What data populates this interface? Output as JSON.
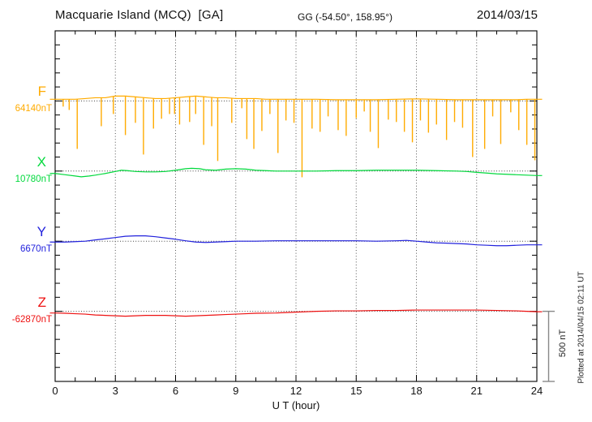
{
  "header": {
    "station_title": "Macquarie Island (MCQ)  [GA]",
    "coordinates": "GG (-54.50°, 158.95°)",
    "date": "2014/03/15"
  },
  "x_axis": {
    "label": "U T (hour)",
    "ticks": [
      0,
      3,
      6,
      9,
      12,
      15,
      18,
      21,
      24
    ]
  },
  "scale_bar": {
    "label": "500 nT",
    "value_nT": 500
  },
  "side_note": "Plotted at 2014/04/15 02:11 UT",
  "chart_data": {
    "type": "line",
    "title": "Magnetogram Macquarie Island (MCQ) [GA] 2014/03/15",
    "xlabel": "U T (hour)",
    "x_range": [
      0,
      24
    ],
    "x_major_tick_hours": 3,
    "x_minor_tick_hours": 1,
    "y_tick_interval_nT": 100,
    "trace_separation_nT": 500,
    "grid": "dotted-vertical-at-3h-and-dotted-baselines",
    "series": [
      {
        "component": "F",
        "reference_value": "64140nT",
        "color": "#FFAB00",
        "baseline_offsets_nT": [
          [
            0,
            12
          ],
          [
            1,
            12
          ],
          [
            1.5,
            17
          ],
          [
            2,
            23
          ],
          [
            2.5,
            23
          ],
          [
            3,
            35
          ],
          [
            3.5,
            35
          ],
          [
            4,
            29
          ],
          [
            4.5,
            23
          ],
          [
            5,
            17
          ],
          [
            5.5,
            17
          ],
          [
            6,
            23
          ],
          [
            6.5,
            29
          ],
          [
            7,
            35
          ],
          [
            7.5,
            29
          ],
          [
            8,
            23
          ],
          [
            8.5,
            23
          ],
          [
            9,
            17
          ],
          [
            10,
            17
          ],
          [
            10.5,
            12
          ],
          [
            11,
            12
          ],
          [
            12,
            12
          ],
          [
            13,
            12
          ],
          [
            14,
            9
          ],
          [
            15,
            9
          ],
          [
            16,
            9
          ],
          [
            17,
            12
          ],
          [
            18,
            15
          ],
          [
            19,
            12
          ],
          [
            20,
            9
          ],
          [
            21,
            9
          ],
          [
            22,
            9
          ],
          [
            23,
            9
          ],
          [
            23.5,
            12
          ],
          [
            24,
            12
          ]
        ],
        "dropout_spikes_nT": [
          [
            0.4,
            40
          ],
          [
            0.7,
            64
          ],
          [
            1.1,
            342
          ],
          [
            2.3,
            180
          ],
          [
            2.9,
            93
          ],
          [
            3.5,
            243
          ],
          [
            4.0,
            156
          ],
          [
            4.4,
            382
          ],
          [
            4.9,
            197
          ],
          [
            5.3,
            127
          ],
          [
            5.7,
            93
          ],
          [
            5.95,
            93
          ],
          [
            6.2,
            168
          ],
          [
            6.7,
            150
          ],
          [
            7.0,
            93
          ],
          [
            7.4,
            313
          ],
          [
            7.8,
            180
          ],
          [
            8.1,
            428
          ],
          [
            8.8,
            156
          ],
          [
            9.3,
            52
          ],
          [
            9.55,
            272
          ],
          [
            9.9,
            342
          ],
          [
            10.3,
            214
          ],
          [
            10.7,
            93
          ],
          [
            11.1,
            371
          ],
          [
            11.5,
            139
          ],
          [
            11.9,
            156
          ],
          [
            12.3,
            544
          ],
          [
            12.8,
            197
          ],
          [
            13.2,
            220
          ],
          [
            13.6,
            110
          ],
          [
            14.1,
            208
          ],
          [
            14.5,
            249
          ],
          [
            15.0,
            122
          ],
          [
            15.4,
            75
          ],
          [
            15.7,
            220
          ],
          [
            16.1,
            336
          ],
          [
            16.6,
            133
          ],
          [
            17.0,
            150
          ],
          [
            17.4,
            220
          ],
          [
            17.8,
            295
          ],
          [
            18.2,
            139
          ],
          [
            18.6,
            226
          ],
          [
            19.0,
            168
          ],
          [
            19.5,
            278
          ],
          [
            19.9,
            150
          ],
          [
            20.3,
            191
          ],
          [
            20.8,
            400
          ],
          [
            21.4,
            342
          ],
          [
            21.8,
            110
          ],
          [
            22.2,
            307
          ],
          [
            22.7,
            81
          ],
          [
            23.1,
            208
          ],
          [
            23.5,
            313
          ],
          [
            23.9,
            423
          ]
        ]
      },
      {
        "component": "X",
        "reference_value": "10780nT",
        "color": "#00D93C",
        "baseline_offsets_nT": [
          [
            0,
            -17
          ],
          [
            0.5,
            -26
          ],
          [
            1,
            -35
          ],
          [
            1.3,
            -41
          ],
          [
            1.7,
            -35
          ],
          [
            2,
            -29
          ],
          [
            2.5,
            -17
          ],
          [
            3,
            -3
          ],
          [
            3.3,
            6
          ],
          [
            3.6,
            3
          ],
          [
            4,
            -3
          ],
          [
            4.5,
            -6
          ],
          [
            5,
            -6
          ],
          [
            5.5,
            -3
          ],
          [
            6,
            6
          ],
          [
            6.5,
            17
          ],
          [
            6.8,
            20
          ],
          [
            7.2,
            17
          ],
          [
            7.5,
            9
          ],
          [
            8,
            6
          ],
          [
            8.5,
            14
          ],
          [
            9,
            17
          ],
          [
            9.5,
            14
          ],
          [
            10,
            6
          ],
          [
            10.5,
            3
          ],
          [
            11,
            0
          ],
          [
            12,
            0
          ],
          [
            13,
            0
          ],
          [
            14,
            3
          ],
          [
            15,
            3
          ],
          [
            16,
            6
          ],
          [
            17,
            6
          ],
          [
            18,
            6
          ],
          [
            19,
            3
          ],
          [
            20,
            0
          ],
          [
            20.5,
            -3
          ],
          [
            21,
            -9
          ],
          [
            21.5,
            -14
          ],
          [
            22,
            -20
          ],
          [
            22.5,
            -23
          ],
          [
            23,
            -26
          ],
          [
            23.5,
            -29
          ],
          [
            24,
            -32
          ]
        ],
        "dropout_spikes_nT": []
      },
      {
        "component": "Y",
        "reference_value": "6670nT",
        "color": "#2222DD",
        "baseline_offsets_nT": [
          [
            0,
            -6
          ],
          [
            0.5,
            -6
          ],
          [
            1,
            -3
          ],
          [
            1.5,
            0
          ],
          [
            2,
            9
          ],
          [
            2.5,
            17
          ],
          [
            3,
            26
          ],
          [
            3.5,
            35
          ],
          [
            4,
            38
          ],
          [
            4.5,
            38
          ],
          [
            5,
            32
          ],
          [
            5.5,
            23
          ],
          [
            6,
            14
          ],
          [
            6.5,
            3
          ],
          [
            7,
            -6
          ],
          [
            7.5,
            -9
          ],
          [
            8,
            -6
          ],
          [
            8.5,
            -3
          ],
          [
            9,
            0
          ],
          [
            10,
            0
          ],
          [
            11,
            3
          ],
          [
            12,
            3
          ],
          [
            13,
            3
          ],
          [
            14,
            3
          ],
          [
            15,
            3
          ],
          [
            16,
            0
          ],
          [
            17,
            3
          ],
          [
            17.5,
            6
          ],
          [
            18,
            0
          ],
          [
            18.5,
            -6
          ],
          [
            19,
            -12
          ],
          [
            19.5,
            -14
          ],
          [
            20,
            -17
          ],
          [
            20.5,
            -20
          ],
          [
            21,
            -26
          ],
          [
            21.5,
            -29
          ],
          [
            22,
            -32
          ],
          [
            22.5,
            -32
          ],
          [
            23,
            -29
          ],
          [
            23.5,
            -26
          ],
          [
            24,
            -26
          ]
        ],
        "dropout_spikes_nT": []
      },
      {
        "component": "Z",
        "reference_value": "-62870nT",
        "color": "#EE1111",
        "baseline_offsets_nT": [
          [
            0,
            -12
          ],
          [
            0.5,
            -14
          ],
          [
            1,
            -17
          ],
          [
            1.5,
            -20
          ],
          [
            2,
            -26
          ],
          [
            2.5,
            -29
          ],
          [
            3,
            -32
          ],
          [
            3.5,
            -35
          ],
          [
            4,
            -32
          ],
          [
            4.5,
            -29
          ],
          [
            5,
            -29
          ],
          [
            5.5,
            -29
          ],
          [
            6,
            -32
          ],
          [
            6.5,
            -35
          ],
          [
            7,
            -32
          ],
          [
            7.5,
            -29
          ],
          [
            8,
            -26
          ],
          [
            8.5,
            -23
          ],
          [
            9,
            -20
          ],
          [
            9.5,
            -17
          ],
          [
            10,
            -14
          ],
          [
            11,
            -12
          ],
          [
            11.5,
            -9
          ],
          [
            12,
            -6
          ],
          [
            12.5,
            -3
          ],
          [
            13,
            0
          ],
          [
            14,
            3
          ],
          [
            15,
            3
          ],
          [
            16,
            6
          ],
          [
            17,
            6
          ],
          [
            18,
            9
          ],
          [
            19,
            9
          ],
          [
            20,
            9
          ],
          [
            21,
            9
          ],
          [
            22,
            6
          ],
          [
            23,
            3
          ],
          [
            23.5,
            0
          ],
          [
            24,
            -3
          ]
        ],
        "dropout_spikes_nT": []
      }
    ]
  }
}
